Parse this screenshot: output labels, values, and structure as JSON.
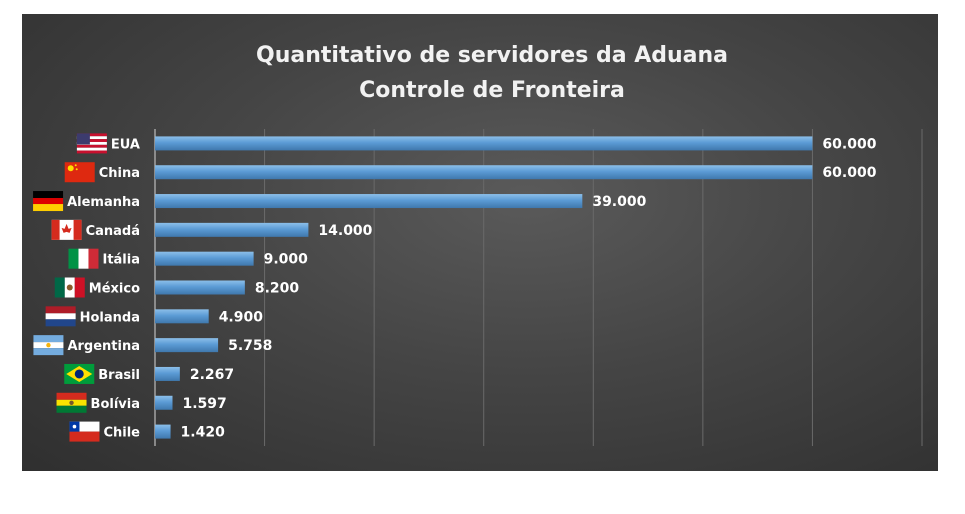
{
  "chart_data": {
    "type": "bar",
    "orientation": "horizontal",
    "title": "Quantitativo de servidores da Aduana",
    "subtitle": "Controle de Fronteira",
    "categories": [
      "EUA",
      "China",
      "Alemanha",
      "Canadá",
      "Itália",
      "México",
      "Holanda",
      "Argentina",
      "Brasil",
      "Bolívia",
      "Chile"
    ],
    "values": [
      60000,
      60000,
      39000,
      14000,
      9000,
      8200,
      4900,
      5758,
      2267,
      1597,
      1420
    ],
    "value_labels": [
      "60.000",
      "60.000",
      "39.000",
      "14.000",
      "9.000",
      "8.200",
      "4.900",
      "5.758",
      "2.267",
      "1.597",
      "1.420"
    ],
    "xlim": [
      0,
      70000
    ],
    "grid": true,
    "legend": "none",
    "flags": [
      "us-flag-icon",
      "china-flag-icon",
      "germany-flag-icon",
      "canada-flag-icon",
      "italy-flag-icon",
      "mexico-flag-icon",
      "netherlands-flag-icon",
      "argentina-flag-icon",
      "brazil-flag-icon",
      "bolivia-flag-icon",
      "chile-flag-icon"
    ],
    "colors": {
      "bar": "#5b9bd5",
      "background": "#454545",
      "text": "#ffffff"
    }
  }
}
